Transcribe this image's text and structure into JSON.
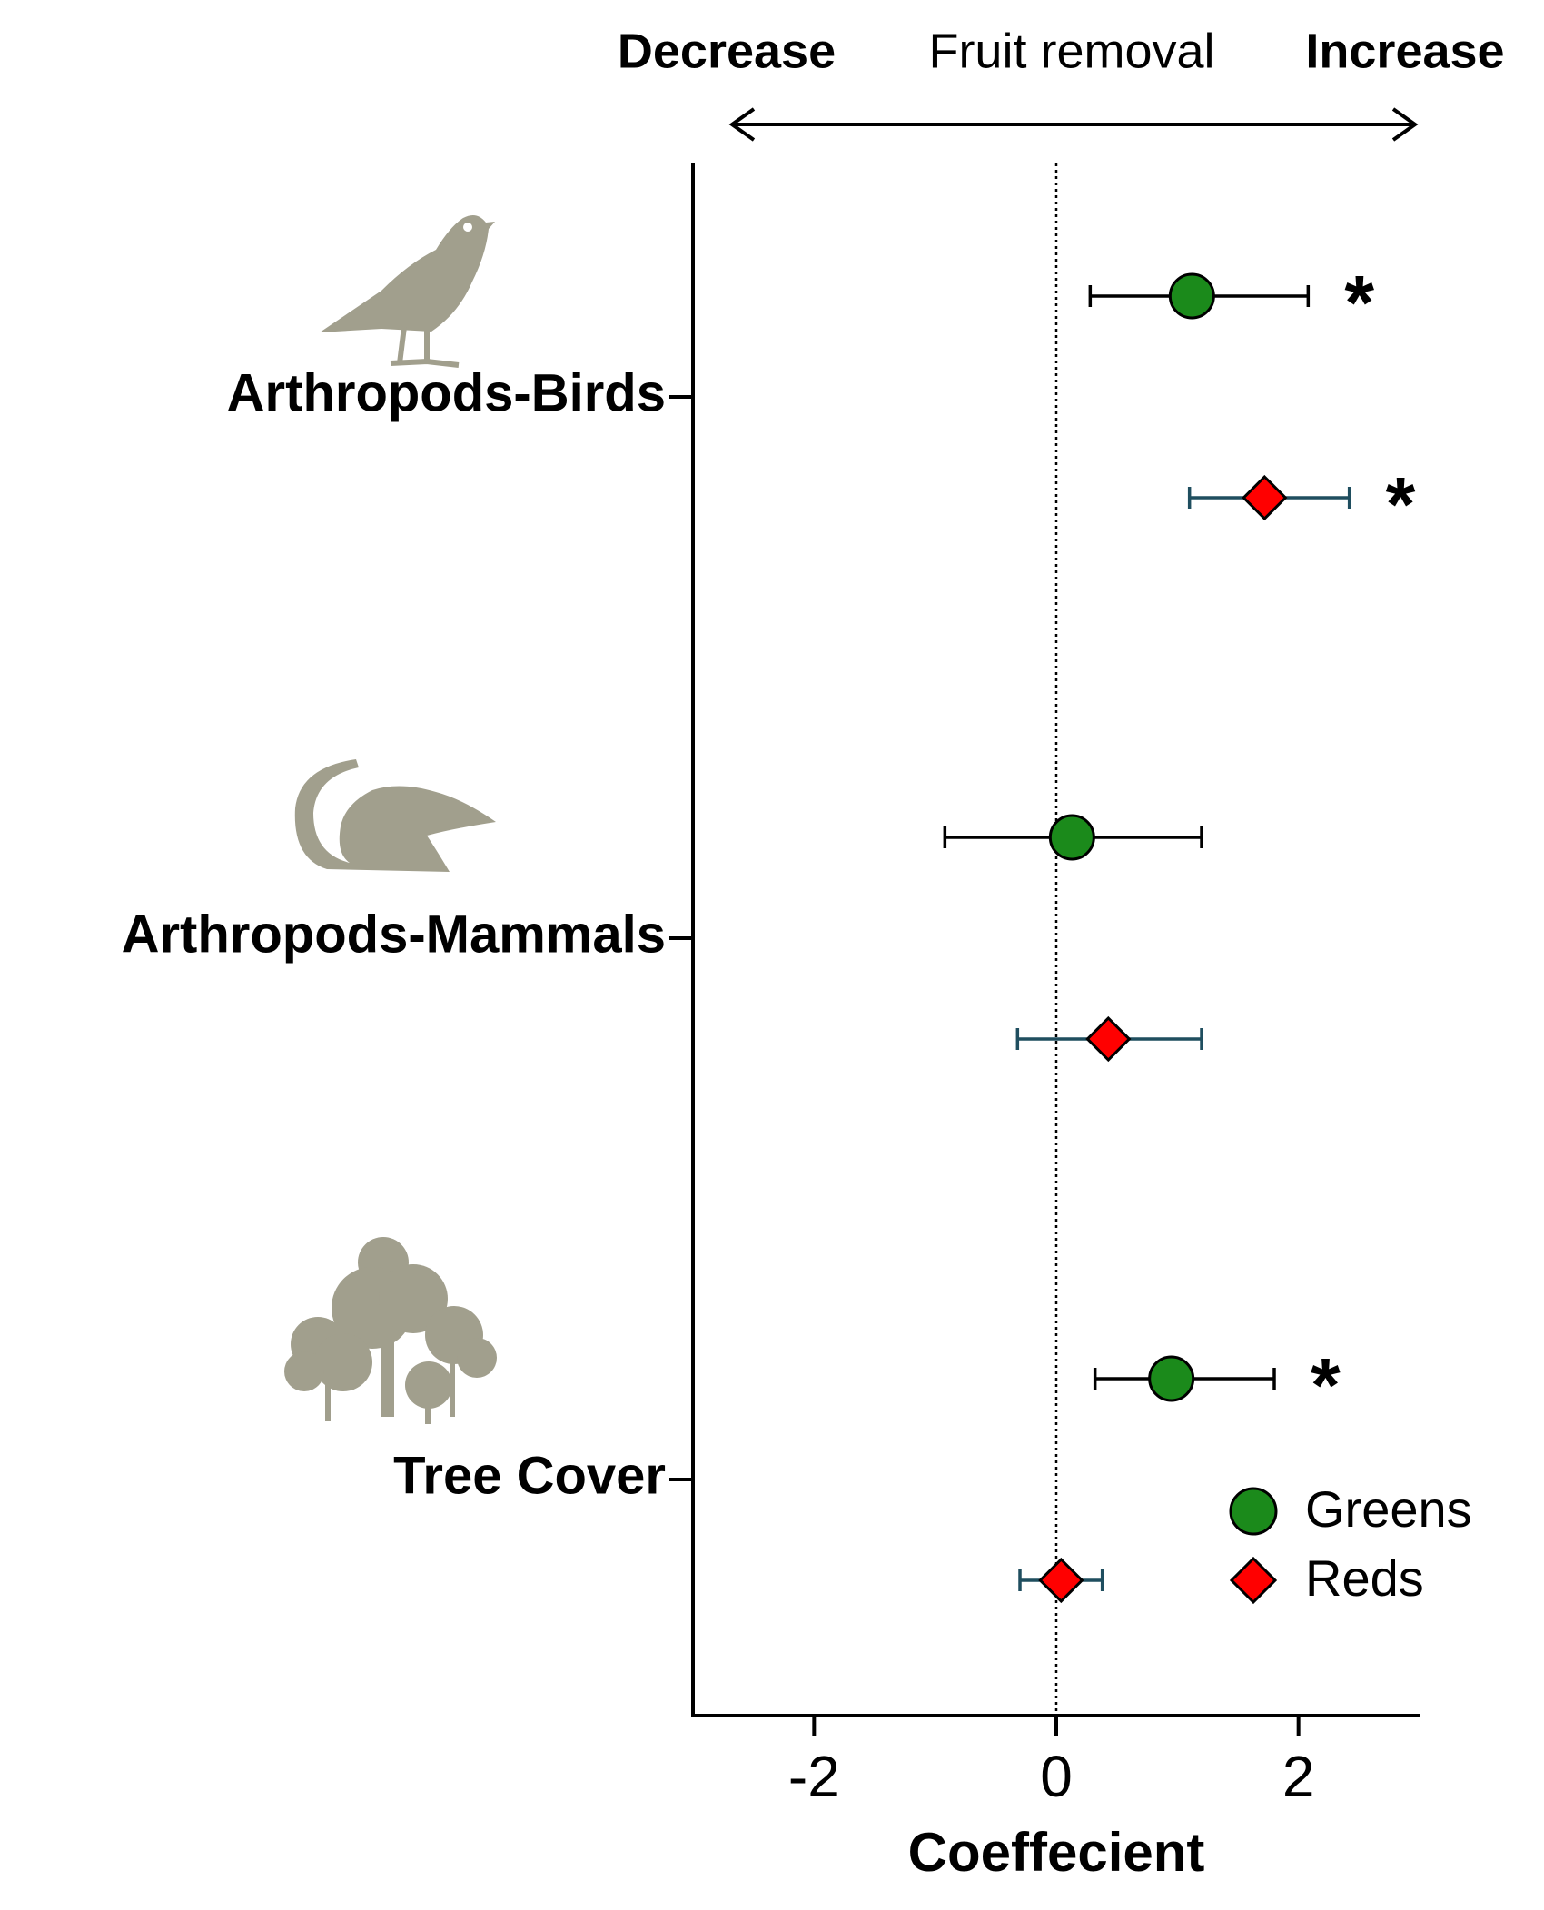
{
  "chart_data": {
    "type": "forest",
    "header": {
      "left": "Decrease",
      "center": "Fruit removal",
      "right": "Increase"
    },
    "xlabel": "Coeffecient",
    "categories": [
      "Arthropods-Birds",
      "Arthropods-Mammals",
      "Tree Cover"
    ],
    "series": [
      {
        "name": "Greens",
        "color": "#1b8a1b",
        "errcolor": "#000000",
        "marker": "circle",
        "values": [
          1.12,
          0.13,
          0.95
        ],
        "lower": [
          0.28,
          -0.92,
          0.32
        ],
        "upper": [
          2.08,
          1.2,
          1.8
        ],
        "labels": [
          "*",
          null,
          "*"
        ]
      },
      {
        "name": "Reds",
        "color": "#ff0000",
        "errcolor": "#1f4e5f",
        "marker": "diamond",
        "values": [
          1.72,
          0.43,
          0.04
        ],
        "lower": [
          1.1,
          -0.32,
          -0.3
        ],
        "upper": [
          2.42,
          1.2,
          0.38
        ],
        "labels": [
          "*",
          null,
          null
        ]
      }
    ],
    "xlim": [
      -3,
      3
    ],
    "xticks": [
      -2,
      0,
      2
    ],
    "vline": 0,
    "legend": "lower right"
  }
}
